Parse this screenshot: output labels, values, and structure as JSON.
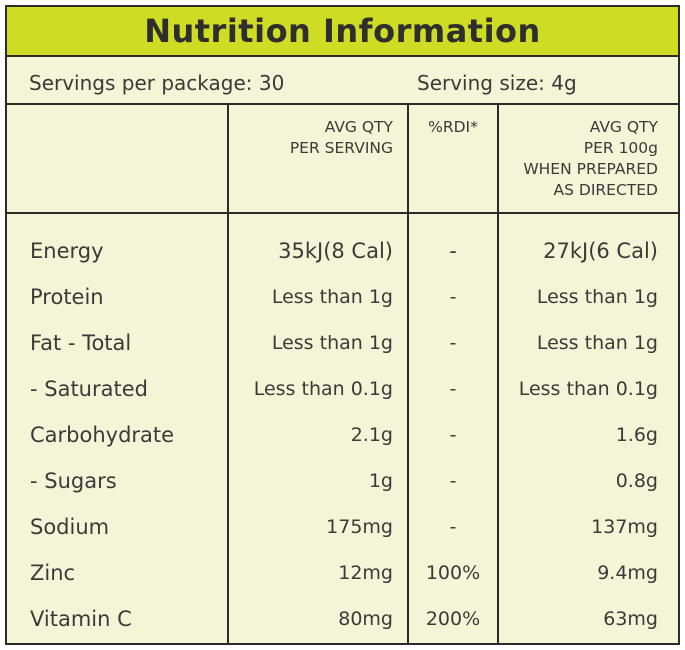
{
  "title": "Nutrition Information",
  "servings_per_package": "Servings per package: 30",
  "serving_size": "Serving size: 4g",
  "headers": {
    "per_serving": [
      "AVG QTY",
      "PER SERVING"
    ],
    "rdi": "%RDI*",
    "per_100g": [
      "AVG QTY",
      "PER 100g",
      "WHEN PREPARED",
      "AS DIRECTED"
    ]
  },
  "rows": [
    {
      "name": "Energy",
      "per_serving": "35kJ(8 Cal)",
      "rdi": "-",
      "per_100g": "27kJ(6 Cal)"
    },
    {
      "name": "Protein",
      "per_serving": "Less than 1g",
      "rdi": "-",
      "per_100g": "Less than 1g"
    },
    {
      "name": "Fat - Total",
      "per_serving": "Less than 1g",
      "rdi": "-",
      "per_100g": "Less than 1g"
    },
    {
      "name": "- Saturated",
      "per_serving": "Less than 0.1g",
      "rdi": "-",
      "per_100g": "Less than 0.1g"
    },
    {
      "name": "Carbohydrate",
      "per_serving": "2.1g",
      "rdi": "-",
      "per_100g": "1.6g"
    },
    {
      "name": "- Sugars",
      "per_serving": "1g",
      "rdi": "-",
      "per_100g": "0.8g"
    },
    {
      "name": "Sodium",
      "per_serving": "175mg",
      "rdi": "-",
      "per_100g": "137mg"
    },
    {
      "name": "Zinc",
      "per_serving": "12mg",
      "rdi": "100%",
      "per_100g": "9.4mg"
    },
    {
      "name": "Vitamin C",
      "per_serving": "80mg",
      "rdi": "200%",
      "per_100g": "63mg"
    }
  ],
  "colors": {
    "header_band": "#cfdc24",
    "panel_bg": "#f4f5d6",
    "border": "#2b2b2b"
  }
}
